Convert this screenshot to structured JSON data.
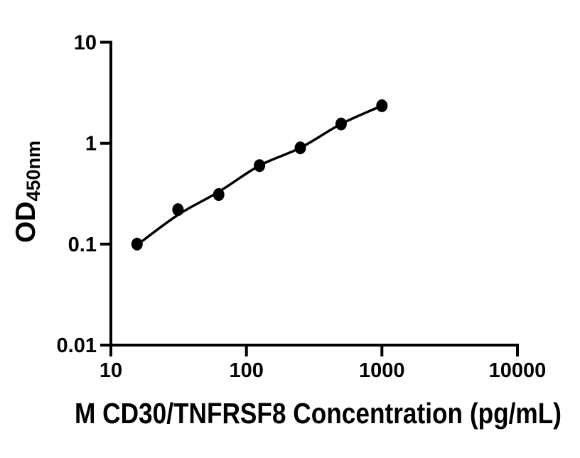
{
  "figure": {
    "background": "#ffffff",
    "foreground": "#000000"
  },
  "chart_data": {
    "type": "scatter",
    "title": "",
    "xlabel": "M CD30/TNFRSF8 Concentration (pg/mL)",
    "ylabel_main": "OD",
    "ylabel_sub": "450nm",
    "x_scale": "log10",
    "y_scale": "log10",
    "xlim": [
      10,
      10000
    ],
    "ylim": [
      0.01,
      10
    ],
    "x_ticks": [
      10,
      100,
      1000,
      10000
    ],
    "x_tick_labels": [
      "10",
      "100",
      "1000",
      "10000"
    ],
    "y_ticks": [
      10,
      1,
      0.1,
      0.01
    ],
    "y_tick_labels": [
      "10",
      "1",
      "0.1",
      "0.01"
    ],
    "grid": false,
    "legend": "none",
    "series": [
      {
        "name": "standard-curve-points",
        "role": "points",
        "marker": "filled-circle",
        "color": "#000000",
        "x": [
          15.6,
          31.25,
          62.5,
          125,
          250,
          500,
          1000
        ],
        "y": [
          0.1,
          0.22,
          0.31,
          0.6,
          0.9,
          1.55,
          2.35
        ]
      },
      {
        "name": "fitted-line",
        "role": "line",
        "color": "#000000",
        "x": [
          15.6,
          31.25,
          62.5,
          125,
          250,
          500,
          1000
        ],
        "y": [
          0.098,
          0.195,
          0.33,
          0.6,
          0.9,
          1.55,
          2.35
        ]
      }
    ]
  }
}
